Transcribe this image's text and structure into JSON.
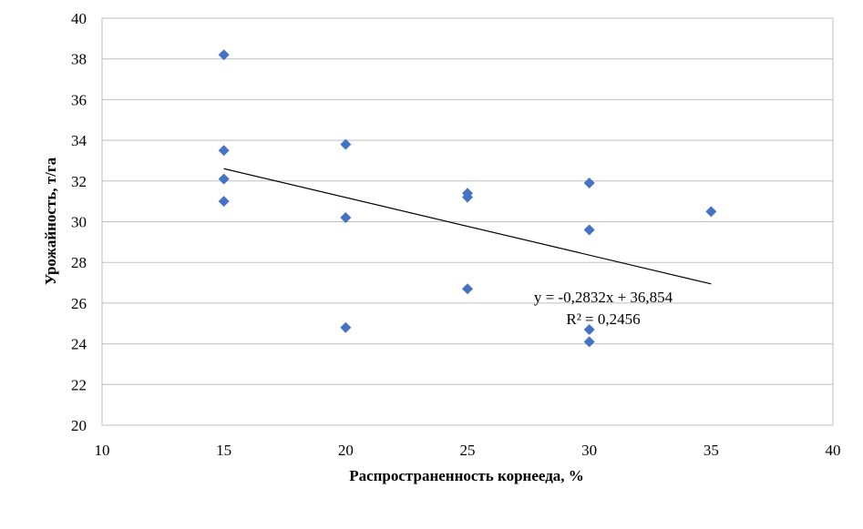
{
  "chart_data": {
    "type": "scatter",
    "title": "",
    "xlabel": "Распространенность корнееда, %",
    "ylabel": "Урожайность, т/га",
    "xlim": [
      10,
      40
    ],
    "ylim": [
      20,
      40
    ],
    "x_ticks": [
      "10",
      "15",
      "20",
      "25",
      "30",
      "35",
      "40"
    ],
    "y_ticks": [
      "20",
      "22",
      "24",
      "26",
      "28",
      "30",
      "32",
      "34",
      "36",
      "38",
      "40"
    ],
    "grid": "horizontal",
    "marker": "diamond",
    "marker_color": "#4472C4",
    "points": [
      {
        "x": 15,
        "y": 38.2
      },
      {
        "x": 15,
        "y": 33.5
      },
      {
        "x": 15,
        "y": 32.1
      },
      {
        "x": 15,
        "y": 31.0
      },
      {
        "x": 20,
        "y": 33.8
      },
      {
        "x": 20,
        "y": 30.2
      },
      {
        "x": 20,
        "y": 24.8
      },
      {
        "x": 25,
        "y": 31.4
      },
      {
        "x": 25,
        "y": 31.2
      },
      {
        "x": 25,
        "y": 26.7
      },
      {
        "x": 30,
        "y": 31.9
      },
      {
        "x": 30,
        "y": 29.6
      },
      {
        "x": 30,
        "y": 24.7
      },
      {
        "x": 30,
        "y": 24.1
      },
      {
        "x": 35,
        "y": 30.5
      }
    ],
    "trendline": {
      "type": "linear",
      "slope": -0.2832,
      "intercept": 36.854,
      "x_range": [
        15,
        35
      ],
      "equation": "y = -0,2832x + 36,854",
      "r_squared": "R² = 0,2456",
      "color": "#000000"
    }
  }
}
